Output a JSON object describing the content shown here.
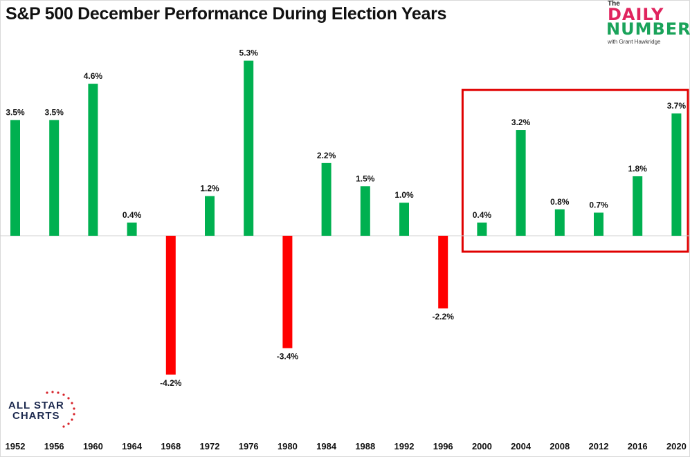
{
  "title": "S&P 500 December Performance During Election Years",
  "logos": {
    "daily_number": {
      "the": "The",
      "daily": "DAILY",
      "number": "NUMBER",
      "byline": "with Grant Hawkridge"
    },
    "all_star_charts": {
      "line1": "ALL STAR",
      "line2": "CHARTS"
    }
  },
  "colors": {
    "positive": "#00b050",
    "negative": "#ff0000",
    "highlight_box": "#e00000",
    "baseline": "#d0d0d0"
  },
  "chart_data": {
    "type": "bar",
    "title": "S&P 500 December Performance During Election Years",
    "xlabel": "",
    "ylabel": "",
    "ylim": [
      -5.5,
      6.0
    ],
    "grid": false,
    "legend": "none",
    "categories": [
      "1952",
      "1956",
      "1960",
      "1964",
      "1968",
      "1972",
      "1976",
      "1980",
      "1984",
      "1988",
      "1992",
      "1996",
      "2000",
      "2004",
      "2008",
      "2012",
      "2016",
      "2020"
    ],
    "values": [
      3.5,
      3.5,
      4.6,
      0.4,
      -4.2,
      1.2,
      5.3,
      -3.4,
      2.2,
      1.5,
      1.0,
      -2.2,
      0.4,
      3.2,
      0.8,
      0.7,
      1.8,
      3.7
    ],
    "labels": [
      "3.5%",
      "3.5%",
      "4.6%",
      "0.4%",
      "-4.2%",
      "1.2%",
      "5.3%",
      "-3.4%",
      "2.2%",
      "1.5%",
      "1.0%",
      "-2.2%",
      "0.4%",
      "3.2%",
      "0.8%",
      "0.7%",
      "1.8%",
      "3.7%"
    ],
    "highlight": {
      "from": "2000",
      "to": "2020"
    }
  }
}
